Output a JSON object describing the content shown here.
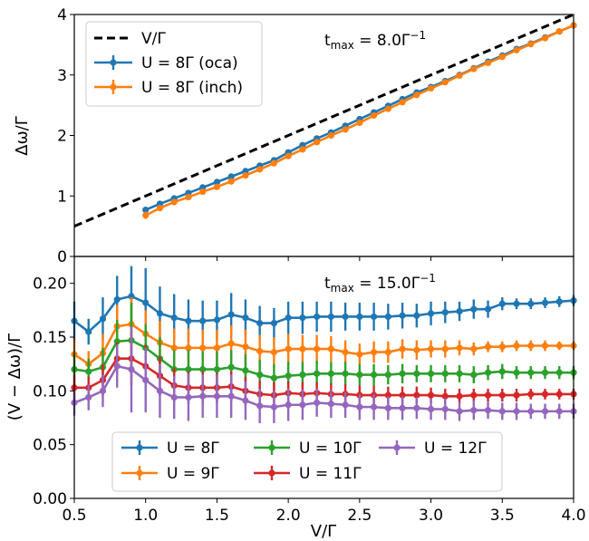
{
  "chart_data": [
    {
      "type": "line",
      "title": "",
      "xlabel": "V/Γ",
      "ylabel": "Δω/Γ",
      "xlim": [
        0.5,
        4.0
      ],
      "ylim": [
        0,
        4
      ],
      "x_ticks": [
        "0.5",
        "1.0",
        "1.5",
        "2.0",
        "2.5",
        "3.0",
        "3.5",
        "4.0"
      ],
      "y_ticks": [
        "0",
        "1",
        "2",
        "3",
        "4"
      ],
      "annotation": "t_max = 8.0Γ⁻¹",
      "legend_position": "upper-left",
      "reference_line": {
        "name": "V/Γ",
        "color": "#000000",
        "style": "dashed",
        "x": [
          0.5,
          4.0
        ],
        "y": [
          0.5,
          4.0
        ]
      },
      "x": [
        1.0,
        1.1,
        1.2,
        1.3,
        1.4,
        1.5,
        1.6,
        1.7,
        1.8,
        1.9,
        2.0,
        2.1,
        2.2,
        2.3,
        2.4,
        2.5,
        2.6,
        2.7,
        2.8,
        2.9,
        3.0,
        3.1,
        3.2,
        3.3,
        3.4,
        3.5,
        3.6,
        3.7,
        3.8,
        3.9,
        4.0
      ],
      "series": [
        {
          "name": "U = 8Γ (oca)",
          "color": "#1f77b4",
          "values": [
            0.77,
            0.87,
            0.96,
            1.05,
            1.14,
            1.23,
            1.32,
            1.41,
            1.5,
            1.59,
            1.72,
            1.84,
            1.95,
            2.05,
            2.16,
            2.27,
            2.38,
            2.49,
            2.6,
            2.71,
            2.8,
            2.9,
            3.0,
            3.11,
            3.22,
            3.32,
            3.43,
            3.52,
            3.62,
            3.72,
            3.82
          ],
          "errors": [
            0.03,
            0.03,
            0.03,
            0.03,
            0.03,
            0.03,
            0.03,
            0.03,
            0.03,
            0.03,
            0.03,
            0.03,
            0.03,
            0.03,
            0.03,
            0.03,
            0.03,
            0.03,
            0.03,
            0.03,
            0.03,
            0.03,
            0.03,
            0.03,
            0.03,
            0.03,
            0.03,
            0.03,
            0.03,
            0.03,
            0.03
          ]
        },
        {
          "name": "U = 8Γ (inch)",
          "color": "#ff7f0e",
          "values": [
            0.68,
            0.8,
            0.9,
            0.98,
            1.07,
            1.15,
            1.24,
            1.34,
            1.44,
            1.54,
            1.66,
            1.77,
            1.89,
            2.0,
            2.1,
            2.21,
            2.33,
            2.44,
            2.55,
            2.67,
            2.78,
            2.88,
            2.99,
            3.1,
            3.2,
            3.3,
            3.41,
            3.51,
            3.61,
            3.72,
            3.82
          ],
          "errors": [
            0.06,
            0.04,
            0.04,
            0.04,
            0.04,
            0.04,
            0.04,
            0.04,
            0.04,
            0.04,
            0.04,
            0.04,
            0.04,
            0.04,
            0.04,
            0.04,
            0.04,
            0.04,
            0.04,
            0.04,
            0.04,
            0.04,
            0.04,
            0.04,
            0.04,
            0.04,
            0.04,
            0.04,
            0.04,
            0.04,
            0.04
          ]
        }
      ]
    },
    {
      "type": "line",
      "title": "",
      "xlabel": "V/Γ",
      "ylabel": "(V − Δω)/Γ",
      "xlim": [
        0.5,
        4.0
      ],
      "ylim": [
        0.0,
        0.225
      ],
      "x_ticks": [
        "0.5",
        "1.0",
        "1.5",
        "2.0",
        "2.5",
        "3.0",
        "3.5",
        "4.0"
      ],
      "y_ticks": [
        "0.00",
        "0.05",
        "0.10",
        "0.15",
        "0.20"
      ],
      "annotation": "t_max = 15.0Γ⁻¹",
      "legend_position": "lower-center",
      "legend_columns": 3,
      "x": [
        0.5,
        0.6,
        0.7,
        0.8,
        0.9,
        1.0,
        1.1,
        1.2,
        1.3,
        1.4,
        1.5,
        1.6,
        1.7,
        1.8,
        1.9,
        2.0,
        2.1,
        2.2,
        2.3,
        2.4,
        2.5,
        2.6,
        2.7,
        2.8,
        2.9,
        3.0,
        3.1,
        3.2,
        3.3,
        3.4,
        3.5,
        3.6,
        3.7,
        3.8,
        3.9,
        4.0
      ],
      "series": [
        {
          "name": "U = 8Γ",
          "color": "#1f77b4",
          "values": [
            0.165,
            0.155,
            0.167,
            0.185,
            0.188,
            0.182,
            0.172,
            0.168,
            0.165,
            0.165,
            0.166,
            0.171,
            0.168,
            0.163,
            0.163,
            0.168,
            0.168,
            0.169,
            0.169,
            0.169,
            0.169,
            0.169,
            0.169,
            0.17,
            0.17,
            0.172,
            0.173,
            0.174,
            0.176,
            0.176,
            0.181,
            0.181,
            0.181,
            0.182,
            0.183,
            0.184
          ],
          "errors": [
            0.018,
            0.012,
            0.02,
            0.022,
            0.028,
            0.032,
            0.025,
            0.022,
            0.02,
            0.019,
            0.018,
            0.02,
            0.017,
            0.016,
            0.014,
            0.015,
            0.015,
            0.014,
            0.014,
            0.013,
            0.013,
            0.013,
            0.012,
            0.012,
            0.011,
            0.011,
            0.01,
            0.009,
            0.009,
            0.008,
            0.006,
            0.005,
            0.005,
            0.005,
            0.005,
            0.005
          ]
        },
        {
          "name": "U = 9Γ",
          "color": "#ff7f0e",
          "values": [
            0.134,
            0.125,
            0.135,
            0.16,
            0.162,
            0.153,
            0.145,
            0.14,
            0.14,
            0.14,
            0.14,
            0.144,
            0.141,
            0.137,
            0.136,
            0.139,
            0.139,
            0.139,
            0.139,
            0.136,
            0.134,
            0.136,
            0.136,
            0.139,
            0.138,
            0.139,
            0.139,
            0.14,
            0.139,
            0.141,
            0.141,
            0.142,
            0.142,
            0.142,
            0.142,
            0.142
          ],
          "errors": [
            0.015,
            0.012,
            0.018,
            0.02,
            0.025,
            0.022,
            0.02,
            0.018,
            0.018,
            0.017,
            0.017,
            0.017,
            0.016,
            0.015,
            0.014,
            0.014,
            0.013,
            0.013,
            0.012,
            0.011,
            0.01,
            0.01,
            0.01,
            0.009,
            0.009,
            0.008,
            0.008,
            0.007,
            0.006,
            0.005,
            0.005,
            0.005,
            0.005,
            0.005,
            0.004,
            0.004
          ]
        },
        {
          "name": "U = 10Γ",
          "color": "#2ca02c",
          "values": [
            0.12,
            0.118,
            0.122,
            0.146,
            0.147,
            0.14,
            0.13,
            0.12,
            0.12,
            0.12,
            0.12,
            0.122,
            0.119,
            0.115,
            0.112,
            0.114,
            0.115,
            0.116,
            0.116,
            0.116,
            0.115,
            0.115,
            0.115,
            0.116,
            0.116,
            0.116,
            0.116,
            0.116,
            0.115,
            0.117,
            0.118,
            0.117,
            0.117,
            0.117,
            0.117,
            0.117
          ],
          "errors": [
            0.015,
            0.012,
            0.018,
            0.02,
            0.035,
            0.022,
            0.02,
            0.018,
            0.018,
            0.017,
            0.017,
            0.016,
            0.015,
            0.014,
            0.013,
            0.013,
            0.012,
            0.012,
            0.011,
            0.011,
            0.01,
            0.01,
            0.009,
            0.009,
            0.008,
            0.008,
            0.008,
            0.008,
            0.008,
            0.007,
            0.007,
            0.006,
            0.006,
            0.006,
            0.006,
            0.006
          ]
        },
        {
          "name": "U = 11Γ",
          "color": "#d62728",
          "values": [
            0.103,
            0.103,
            0.11,
            0.13,
            0.13,
            0.123,
            0.114,
            0.105,
            0.103,
            0.103,
            0.103,
            0.104,
            0.1,
            0.097,
            0.096,
            0.098,
            0.097,
            0.098,
            0.097,
            0.097,
            0.096,
            0.096,
            0.096,
            0.096,
            0.096,
            0.096,
            0.095,
            0.095,
            0.096,
            0.096,
            0.096,
            0.096,
            0.097,
            0.097,
            0.097,
            0.097
          ],
          "errors": [
            0.012,
            0.01,
            0.015,
            0.015,
            0.025,
            0.02,
            0.018,
            0.016,
            0.015,
            0.015,
            0.014,
            0.014,
            0.013,
            0.012,
            0.012,
            0.011,
            0.011,
            0.01,
            0.01,
            0.009,
            0.009,
            0.009,
            0.008,
            0.008,
            0.008,
            0.007,
            0.007,
            0.007,
            0.006,
            0.006,
            0.006,
            0.006,
            0.005,
            0.005,
            0.005,
            0.005
          ]
        },
        {
          "name": "U = 12Γ",
          "color": "#9467bd",
          "values": [
            0.089,
            0.094,
            0.1,
            0.123,
            0.12,
            0.11,
            0.1,
            0.094,
            0.094,
            0.095,
            0.095,
            0.095,
            0.091,
            0.086,
            0.085,
            0.087,
            0.087,
            0.089,
            0.088,
            0.087,
            0.085,
            0.085,
            0.084,
            0.084,
            0.084,
            0.083,
            0.083,
            0.081,
            0.082,
            0.082,
            0.081,
            0.081,
            0.081,
            0.081,
            0.081,
            0.081
          ],
          "errors": [
            0.012,
            0.012,
            0.015,
            0.02,
            0.04,
            0.03,
            0.025,
            0.02,
            0.022,
            0.02,
            0.02,
            0.02,
            0.018,
            0.016,
            0.015,
            0.015,
            0.014,
            0.013,
            0.013,
            0.012,
            0.012,
            0.012,
            0.011,
            0.011,
            0.01,
            0.01,
            0.01,
            0.009,
            0.009,
            0.008,
            0.008,
            0.008,
            0.007,
            0.007,
            0.007,
            0.007
          ]
        }
      ]
    }
  ]
}
